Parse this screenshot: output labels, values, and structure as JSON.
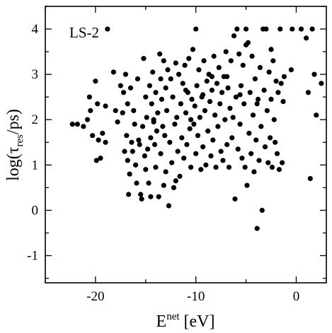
{
  "chart_data": {
    "type": "scatter",
    "annotation": "LS-2",
    "xlabel": {
      "base": "E",
      "sup": "net",
      "suffix": " [eV]"
    },
    "ylabel": {
      "prefix": "log(τ",
      "sub": "res",
      "suffix": "/ps)"
    },
    "xlim": [
      -25,
      3
    ],
    "ylim": [
      -1.6,
      4.5
    ],
    "xticks": [
      -20,
      -10,
      0
    ],
    "xtick_labels": [
      "-20",
      "-10",
      "0"
    ],
    "yticks": [
      -1,
      0,
      1,
      2,
      3,
      4
    ],
    "ytick_labels": [
      "-1",
      "0",
      "1",
      "2",
      "3",
      "4"
    ],
    "grid": false,
    "marker_color": "#000000",
    "points": [
      [
        -22.3,
        1.9
      ],
      [
        -21.8,
        1.9
      ],
      [
        -21.2,
        1.85
      ],
      [
        -20.8,
        2.0
      ],
      [
        -20.6,
        2.5
      ],
      [
        -20.5,
        2.2
      ],
      [
        -20.3,
        1.65
      ],
      [
        -20.0,
        2.85
      ],
      [
        -19.8,
        2.35
      ],
      [
        -19.7,
        1.55
      ],
      [
        -19.5,
        1.15
      ],
      [
        -19.3,
        1.7
      ],
      [
        -19.0,
        2.3
      ],
      [
        -19.0,
        1.5
      ],
      [
        -18.8,
        4.0
      ],
      [
        -18.0,
        2.2
      ],
      [
        -17.8,
        1.95
      ],
      [
        -17.5,
        2.75
      ],
      [
        -17.3,
        2.15
      ],
      [
        -17.2,
        2.6
      ],
      [
        -17.0,
        3.0
      ],
      [
        -17.1,
        1.3
      ],
      [
        -16.9,
        1.65
      ],
      [
        -16.8,
        1.1
      ],
      [
        -16.7,
        0.35
      ],
      [
        -16.6,
        0.8
      ],
      [
        -16.5,
        2.7
      ],
      [
        -16.4,
        1.5
      ],
      [
        -16.3,
        1.3
      ],
      [
        -16.2,
        2.2
      ],
      [
        -16.1,
        1.9
      ],
      [
        -16.0,
        1.0
      ],
      [
        -15.9,
        0.6
      ],
      [
        -15.8,
        2.9
      ],
      [
        -15.7,
        1.55
      ],
      [
        -15.6,
        1.45
      ],
      [
        -15.5,
        0.35
      ],
      [
        -15.4,
        0.25
      ],
      [
        -15.3,
        1.85
      ],
      [
        -15.2,
        3.35
      ],
      [
        -15.1,
        1.2
      ],
      [
        -15.0,
        2.5
      ],
      [
        -14.9,
        2.05
      ],
      [
        -14.8,
        1.35
      ],
      [
        -14.7,
        0.6
      ],
      [
        -14.6,
        2.75
      ],
      [
        -14.5,
        0.3
      ],
      [
        -14.5,
        1.6
      ],
      [
        -14.4,
        2.35
      ],
      [
        -14.3,
        3.05
      ],
      [
        -14.2,
        1.95
      ],
      [
        -14.1,
        1.45
      ],
      [
        -14.0,
        2.6
      ],
      [
        -14.0,
        0.95
      ],
      [
        -13.9,
        1.75
      ],
      [
        -13.8,
        2.15
      ],
      [
        -13.7,
        0.3
      ],
      [
        -13.6,
        3.45
      ],
      [
        -13.5,
        2.9
      ],
      [
        -13.5,
        1.25
      ],
      [
        -13.4,
        2.45
      ],
      [
        -13.3,
        1.85
      ],
      [
        -13.2,
        0.55
      ],
      [
        -13.1,
        1.65
      ],
      [
        -13.0,
        2.7
      ],
      [
        -13.0,
        0.85
      ],
      [
        -12.9,
        2.2
      ],
      [
        -12.8,
        3.1
      ],
      [
        -12.7,
        0.1
      ],
      [
        -12.6,
        1.5
      ],
      [
        -12.5,
        2.9
      ],
      [
        -12.4,
        1.05
      ],
      [
        -12.3,
        2.5
      ],
      [
        -12.2,
        0.5
      ],
      [
        -12.1,
        1.9
      ],
      [
        -12.0,
        3.25
      ],
      [
        -11.9,
        2.05
      ],
      [
        -11.8,
        1.3
      ],
      [
        -11.7,
        3.0
      ],
      [
        -11.6,
        0.75
      ],
      [
        -11.5,
        2.35
      ],
      [
        -11.4,
        1.6
      ],
      [
        -11.3,
        2.8
      ],
      [
        -11.2,
        1.15
      ],
      [
        -11.1,
        3.2
      ],
      [
        -11.0,
        2.15
      ],
      [
        -10.9,
        1.45
      ],
      [
        -10.8,
        2.6
      ],
      [
        -10.7,
        3.35
      ],
      [
        -10.6,
        1.8
      ],
      [
        -10.5,
        0.95
      ],
      [
        -10.4,
        2.45
      ],
      [
        -10.3,
        3.55
      ],
      [
        -10.2,
        1.9
      ],
      [
        -10.1,
        2.3
      ],
      [
        -10.0,
        4.0
      ],
      [
        -10.0,
        1.25
      ],
      [
        -9.9,
        2.75
      ],
      [
        -9.8,
        1.65
      ],
      [
        -9.7,
        3.1
      ],
      [
        -9.6,
        2.05
      ],
      [
        -9.5,
        0.9
      ],
      [
        -9.4,
        2.5
      ],
      [
        -9.3,
        1.4
      ],
      [
        -9.2,
        3.3
      ],
      [
        -9.1,
        2.2
      ],
      [
        -9.0,
        1.0
      ],
      [
        -8.9,
        2.85
      ],
      [
        -8.8,
        1.75
      ],
      [
        -8.7,
        3.0
      ],
      [
        -8.6,
        2.4
      ],
      [
        -8.5,
        1.2
      ],
      [
        -8.4,
        2.65
      ],
      [
        -8.3,
        1.55
      ],
      [
        -8.2,
        3.4
      ],
      [
        -8.1,
        2.1
      ],
      [
        -8.0,
        0.95
      ],
      [
        -7.9,
        2.8
      ],
      [
        -7.8,
        1.85
      ],
      [
        -7.7,
        3.15
      ],
      [
        -7.6,
        2.35
      ],
      [
        -7.5,
        1.3
      ],
      [
        -7.4,
        2.6
      ],
      [
        -7.3,
        1.1
      ],
      [
        -7.2,
        2.95
      ],
      [
        -7.1,
        2.0
      ],
      [
        -7.0,
        3.5
      ],
      [
        -6.9,
        1.45
      ],
      [
        -6.8,
        2.7
      ],
      [
        -6.7,
        0.95
      ],
      [
        -6.6,
        2.25
      ],
      [
        -6.5,
        3.3
      ],
      [
        -6.4,
        1.6
      ],
      [
        -6.3,
        2.05
      ],
      [
        -6.2,
        3.85
      ],
      [
        -6.1,
        0.25
      ],
      [
        -6.0,
        2.5
      ],
      [
        -5.9,
        4.0
      ],
      [
        -5.8,
        1.35
      ],
      [
        -5.7,
        3.45
      ],
      [
        -5.6,
        1.9
      ],
      [
        -5.5,
        2.75
      ],
      [
        -5.4,
        1.15
      ],
      [
        -5.3,
        3.2
      ],
      [
        -5.2,
        2.35
      ],
      [
        -5.1,
        0.95
      ],
      [
        -5.0,
        4.0
      ],
      [
        -5.0,
        3.65
      ],
      [
        -4.9,
        0.55
      ],
      [
        -4.8,
        3.7
      ],
      [
        -4.7,
        1.7
      ],
      [
        -4.6,
        2.6
      ],
      [
        -4.5,
        1.25
      ],
      [
        -4.4,
        3.4
      ],
      [
        -4.3,
        2.1
      ],
      [
        -4.2,
        0.85
      ],
      [
        -4.1,
        2.9
      ],
      [
        -4.0,
        1.55
      ],
      [
        -3.9,
        -0.4
      ],
      [
        -3.8,
        2.45
      ],
      [
        -3.7,
        1.1
      ],
      [
        -3.6,
        3.15
      ],
      [
        -3.5,
        1.85
      ],
      [
        -3.4,
        0.0
      ],
      [
        -3.3,
        4.0
      ],
      [
        -3.2,
        2.65
      ],
      [
        -3.1,
        1.4
      ],
      [
        -3.0,
        4.0
      ],
      [
        -2.9,
        2.2
      ],
      [
        -2.8,
        1.05
      ],
      [
        -2.7,
        3.05
      ],
      [
        -2.6,
        1.6
      ],
      [
        -2.5,
        2.45
      ],
      [
        -2.4,
        0.95
      ],
      [
        -2.3,
        3.3
      ],
      [
        -2.2,
        2.0
      ],
      [
        -2.1,
        1.5
      ],
      [
        -2.0,
        2.85
      ],
      [
        -1.9,
        1.25
      ],
      [
        -1.8,
        2.6
      ],
      [
        -1.7,
        0.9
      ],
      [
        -1.6,
        4.0
      ],
      [
        -1.5,
        2.8
      ],
      [
        -1.4,
        1.05
      ],
      [
        -1.3,
        2.4
      ],
      [
        -1.2,
        2.95
      ],
      [
        -0.5,
        3.1
      ],
      [
        -0.4,
        4.0
      ],
      [
        0.5,
        4.0
      ],
      [
        1.0,
        3.8
      ],
      [
        1.2,
        2.6
      ],
      [
        1.4,
        0.7
      ],
      [
        1.6,
        4.0
      ],
      [
        1.8,
        3.0
      ],
      [
        2.0,
        2.1
      ],
      [
        2.5,
        2.8
      ],
      [
        -19.9,
        1.1
      ],
      [
        -18.2,
        3.05
      ],
      [
        -16.8,
        2.35
      ],
      [
        -15.0,
        0.9
      ],
      [
        -13.2,
        3.3
      ],
      [
        -12.0,
        0.65
      ],
      [
        -11.0,
        2.65
      ],
      [
        -9.3,
        2.55
      ],
      [
        -8.4,
        2.95
      ],
      [
        -6.9,
        2.95
      ],
      [
        -5.6,
        2.55
      ],
      [
        -3.9,
        2.35
      ],
      [
        -2.5,
        3.55
      ],
      [
        -14.2,
        2.0
      ],
      [
        -10.5,
        2.0
      ]
    ]
  }
}
